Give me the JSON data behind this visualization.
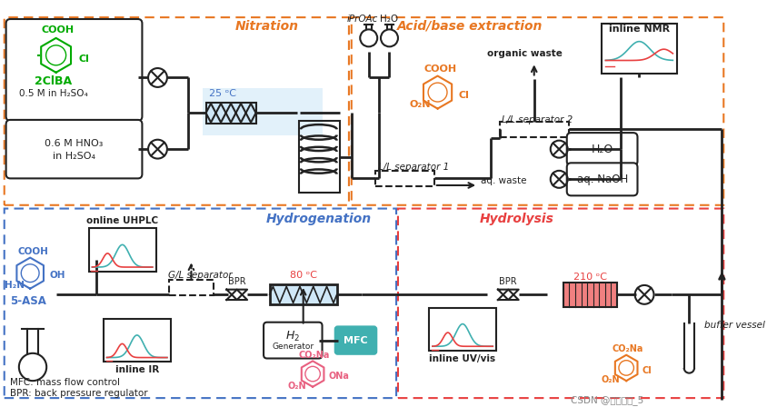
{
  "title": "",
  "bg_color": "#ffffff",
  "orange_color": "#E87722",
  "blue_color": "#4472C4",
  "red_color": "#E84040",
  "teal_color": "#40B0B0",
  "green_color": "#00AA00",
  "dark_color": "#222222",
  "gray_color": "#888888",
  "light_blue_bg": "#D0E8F8",
  "pink_color": "#E86080",
  "section_labels": {
    "nitration": "Nitration",
    "acid_base": "Acid/base extraction",
    "hydrogenation": "Hydrogenation",
    "hydrolysis": "Hydrolysis"
  },
  "bottom_text": "MFC: mass flow control\nBPR: back pressure regulator",
  "watermark": "CSDN @仰望星空_5"
}
